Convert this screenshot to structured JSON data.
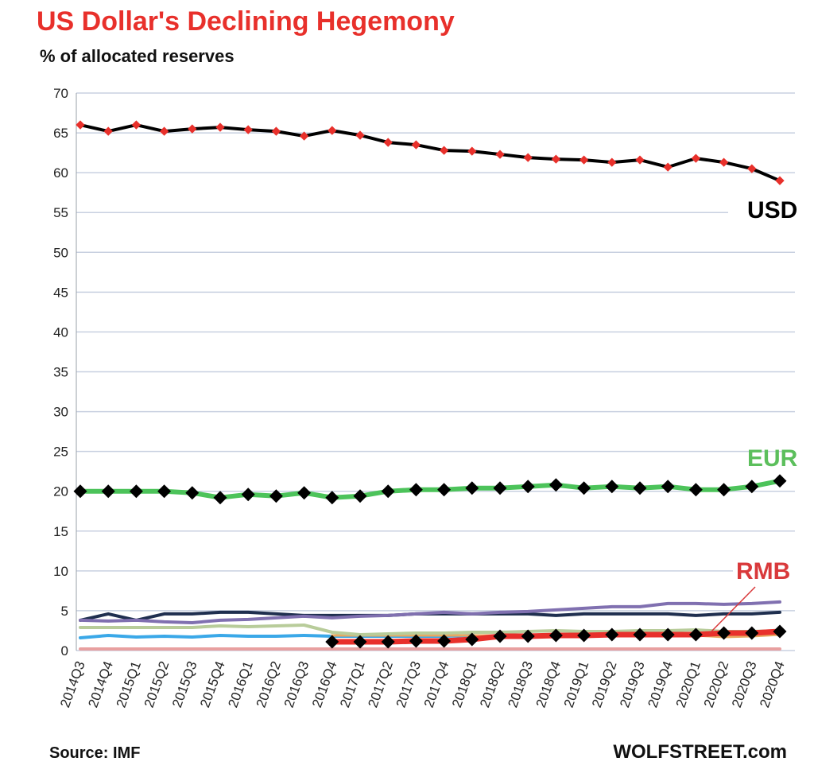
{
  "title": "US Dollar's  Declining Hegemony",
  "subtitle": "% of allocated reserves",
  "source": "Source: IMF",
  "brand": "WOLFSTREET.com",
  "colors": {
    "title": "#e8302b",
    "grid": "#c8d0e0",
    "usd_line": "#000000",
    "usd_marker": "#e8302b",
    "eur_line": "#4cc35a",
    "eur_marker": "#000000",
    "eur_label": "#5cbf5c",
    "rmb_line": "#e8302b",
    "rmb_marker": "#000000",
    "rmb_label": "#d9393b"
  },
  "chart_data": {
    "type": "line",
    "title": "US Dollar's  Declining Hegemony",
    "ylabel": "% of allocated reserves",
    "ylim": [
      0,
      70
    ],
    "yticks": [
      0,
      5,
      10,
      15,
      20,
      25,
      30,
      35,
      40,
      45,
      50,
      55,
      60,
      65,
      70
    ],
    "grid": true,
    "categories": [
      "2014Q3",
      "2014Q4",
      "2015Q1",
      "2015Q2",
      "2015Q3",
      "2015Q4",
      "2016Q1",
      "2016Q2",
      "2016Q3",
      "2016Q4",
      "2017Q1",
      "2017Q2",
      "2017Q3",
      "2017Q4",
      "2018Q1",
      "2018Q2",
      "2018Q3",
      "2018Q4",
      "2019Q1",
      "2019Q2",
      "2019Q3",
      "2019Q4",
      "2020Q1",
      "2020Q2",
      "2020Q3",
      "2020Q4"
    ],
    "series": [
      {
        "name": "USD",
        "color": "#000000",
        "marker_color": "#e8302b",
        "width": 4,
        "values": [
          66.0,
          65.2,
          66.0,
          65.2,
          65.5,
          65.7,
          65.4,
          65.2,
          64.6,
          65.3,
          64.7,
          63.8,
          63.5,
          62.8,
          62.7,
          62.3,
          61.9,
          61.7,
          61.6,
          61.3,
          61.6,
          60.7,
          61.8,
          61.3,
          60.5,
          59.0
        ]
      },
      {
        "name": "EUR",
        "color": "#4cc35a",
        "marker_color": "#000000",
        "width": 6,
        "values": [
          20.0,
          20.0,
          20.0,
          20.0,
          19.8,
          19.2,
          19.6,
          19.4,
          19.8,
          19.2,
          19.4,
          20.0,
          20.2,
          20.2,
          20.4,
          20.4,
          20.6,
          20.8,
          20.4,
          20.6,
          20.4,
          20.6,
          20.2,
          20.2,
          20.6,
          21.3
        ]
      },
      {
        "name": "RMB",
        "color": "#e8302b",
        "marker_color": "#000000",
        "width": 7,
        "values": [
          null,
          null,
          null,
          null,
          null,
          null,
          null,
          null,
          null,
          1.1,
          1.1,
          1.1,
          1.2,
          1.2,
          1.4,
          1.8,
          1.8,
          1.9,
          1.9,
          2.0,
          2.0,
          2.0,
          2.0,
          2.2,
          2.2,
          2.4
        ]
      },
      {
        "name": "",
        "color": "#8070b0",
        "marker_color": null,
        "width": 4,
        "values": [
          3.8,
          3.7,
          3.8,
          3.6,
          3.5,
          3.8,
          3.9,
          4.1,
          4.3,
          4.1,
          4.3,
          4.4,
          4.6,
          4.8,
          4.6,
          4.8,
          4.9,
          5.1,
          5.3,
          5.5,
          5.5,
          5.9,
          5.9,
          5.8,
          5.9,
          6.1
        ]
      },
      {
        "name": "",
        "color": "#1f2f4f",
        "marker_color": null,
        "width": 4,
        "values": [
          3.8,
          4.6,
          3.8,
          4.6,
          4.6,
          4.8,
          4.8,
          4.6,
          4.4,
          4.4,
          4.4,
          4.4,
          4.6,
          4.6,
          4.6,
          4.6,
          4.6,
          4.4,
          4.6,
          4.6,
          4.6,
          4.6,
          4.4,
          4.6,
          4.6,
          4.8
        ]
      },
      {
        "name": "",
        "color": "#b8cc9a",
        "marker_color": null,
        "width": 4,
        "values": [
          2.9,
          2.9,
          2.9,
          2.9,
          2.9,
          3.1,
          3.0,
          3.1,
          3.2,
          2.3,
          2.0,
          2.1,
          2.2,
          2.2,
          2.3,
          2.3,
          2.4,
          2.5,
          2.4,
          2.4,
          2.5,
          2.5,
          2.6,
          2.4,
          2.4,
          2.5
        ]
      },
      {
        "name": "",
        "color": "#e8a860",
        "marker_color": null,
        "width": 3,
        "values": [
          null,
          null,
          null,
          null,
          null,
          null,
          null,
          null,
          null,
          1.9,
          1.9,
          1.9,
          1.9,
          1.9,
          1.9,
          1.9,
          1.9,
          1.9,
          1.9,
          1.9,
          1.9,
          1.9,
          1.9,
          1.7,
          1.8,
          2.0
        ]
      },
      {
        "name": "",
        "color": "#3aa8e8",
        "marker_color": null,
        "width": 4,
        "values": [
          1.6,
          1.9,
          1.7,
          1.8,
          1.7,
          1.9,
          1.8,
          1.8,
          1.9,
          1.8,
          1.8,
          1.8,
          1.8,
          1.8,
          1.9,
          null,
          null,
          null,
          null,
          null,
          null,
          null,
          null,
          null,
          null,
          null
        ]
      },
      {
        "name": "",
        "color": "#e8a0a0",
        "marker_color": null,
        "width": 4,
        "values": [
          0.2,
          0.2,
          0.2,
          0.2,
          0.2,
          0.2,
          0.2,
          0.2,
          0.2,
          0.2,
          0.2,
          0.2,
          0.2,
          0.2,
          0.2,
          0.2,
          0.2,
          0.2,
          0.2,
          0.2,
          0.2,
          0.2,
          0.2,
          0.2,
          0.2,
          0.2
        ]
      }
    ],
    "annotations": [
      {
        "text": "USD",
        "color": "#000000"
      },
      {
        "text": "EUR",
        "color": "#5cbf5c"
      },
      {
        "text": "RMB",
        "color": "#d9393b"
      }
    ]
  }
}
